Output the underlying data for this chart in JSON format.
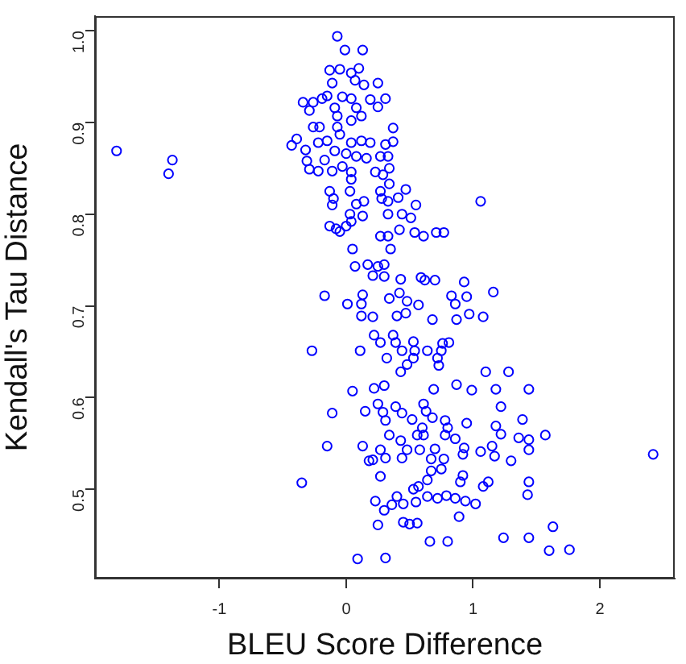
{
  "chart_data": {
    "type": "scatter",
    "xlabel": "BLEU Score Difference",
    "ylabel": "Kendall's Tau Distance",
    "xlim": [
      -1.98,
      2.59
    ],
    "ylim": [
      0.4025,
      1.016
    ],
    "xticks": [
      -1,
      0,
      1,
      2
    ],
    "yticks": [
      0.5,
      0.6,
      0.7,
      0.8,
      0.9,
      {
        "value": 1,
        "label": "1.0"
      }
    ],
    "marker": "circle",
    "legend": false,
    "grid": false,
    "series": [
      {
        "color": "#0000ff",
        "x": [
          -1.81,
          -1.37,
          -1.4,
          -0.07,
          -0.01,
          0.13,
          -0.13,
          -0.05,
          0.04,
          0.1,
          0.07,
          0.14,
          -0.11,
          -0.34,
          -0.26,
          -0.19,
          -0.15,
          -0.03,
          0.04,
          -0.29,
          -0.09,
          0.08,
          0.19,
          -0.07,
          0.04,
          0.12,
          -0.26,
          -0.21,
          -0.07,
          -0.39,
          -0.43,
          -0.32,
          -0.22,
          -0.15,
          -0.05,
          0.04,
          0.12,
          0.19,
          -0.09,
          0.0,
          0.08,
          0.16,
          -0.17,
          -0.31,
          -0.29,
          -0.22,
          -0.11,
          -0.03,
          0.04,
          0.23,
          0.04,
          0.03,
          -0.13,
          -0.1,
          -0.11,
          0.08,
          0.14,
          0.03,
          0.13,
          -0.13,
          -0.08,
          0.0,
          0.04,
          -0.05,
          0.05,
          0.07,
          0.17,
          0.21,
          0.25,
          0.31,
          0.25,
          0.37,
          0.31,
          0.37,
          0.27,
          0.33,
          0.34,
          0.29,
          0.34,
          0.27,
          0.47,
          0.41,
          0.28,
          0.33,
          0.55,
          1.06,
          0.33,
          0.44,
          0.51,
          0.42,
          0.54,
          0.61,
          0.71,
          0.77,
          0.27,
          0.33,
          0.35,
          0.25,
          0.3,
          0.3,
          0.43,
          0.59,
          0.62,
          0.7,
          0.93,
          -0.17,
          0.01,
          0.13,
          0.12,
          0.12,
          0.21,
          0.22,
          -0.27,
          0.11,
          0.05,
          0.22,
          -0.11,
          0.15,
          -0.15,
          0.13,
          0.18,
          0.21,
          -0.35,
          0.23,
          0.09,
          0.42,
          0.34,
          0.48,
          0.57,
          0.83,
          0.86,
          0.95,
          1.16,
          0.4,
          0.47,
          0.68,
          0.87,
          0.97,
          1.08,
          0.37,
          0.27,
          0.39,
          0.53,
          0.44,
          0.54,
          0.64,
          0.76,
          0.81,
          0.75,
          0.32,
          0.53,
          0.72,
          0.48,
          0.73,
          0.43,
          1.1,
          1.28,
          0.3,
          0.69,
          0.87,
          0.99,
          1.18,
          1.44,
          0.25,
          0.39,
          0.61,
          1.22,
          0.29,
          0.44,
          0.63,
          0.31,
          0.52,
          0.68,
          0.78,
          0.95,
          1.39,
          1.18,
          0.6,
          0.8,
          0.34,
          0.43,
          0.56,
          0.61,
          0.78,
          0.86,
          1.22,
          1.36,
          1.44,
          1.57,
          2.42,
          0.27,
          0.48,
          0.58,
          0.7,
          0.93,
          1.06,
          1.15,
          1.44,
          0.31,
          0.44,
          0.67,
          0.77,
          0.92,
          1.17,
          1.3,
          0.27,
          0.67,
          0.75,
          0.64,
          0.92,
          0.9,
          1.12,
          1.08,
          1.44,
          0.57,
          0.53,
          0.4,
          0.45,
          0.64,
          0.72,
          0.79,
          0.86,
          0.94,
          1.02,
          1.43,
          0.3,
          0.36,
          0.55,
          0.89,
          0.25,
          0.45,
          0.5,
          0.56,
          1.63,
          0.66,
          0.8,
          1.24,
          1.44,
          1.6,
          1.76,
          0.31
        ],
        "values": [
          0.869,
          0.859,
          0.844,
          0.994,
          0.979,
          0.979,
          0.957,
          0.958,
          0.954,
          0.959,
          0.946,
          0.941,
          0.943,
          0.922,
          0.922,
          0.926,
          0.929,
          0.928,
          0.926,
          0.913,
          0.916,
          0.916,
          0.925,
          0.907,
          0.902,
          0.907,
          0.895,
          0.895,
          0.895,
          0.882,
          0.875,
          0.87,
          0.878,
          0.88,
          0.887,
          0.878,
          0.88,
          0.878,
          0.869,
          0.866,
          0.863,
          0.861,
          0.859,
          0.858,
          0.849,
          0.847,
          0.847,
          0.852,
          0.846,
          0.846,
          0.838,
          0.825,
          0.825,
          0.817,
          0.81,
          0.811,
          0.814,
          0.8,
          0.798,
          0.787,
          0.784,
          0.787,
          0.792,
          0.781,
          0.762,
          0.743,
          0.745,
          0.733,
          0.943,
          0.926,
          0.917,
          0.894,
          0.876,
          0.879,
          0.863,
          0.863,
          0.85,
          0.843,
          0.833,
          0.825,
          0.827,
          0.818,
          0.817,
          0.814,
          0.81,
          0.814,
          0.8,
          0.8,
          0.796,
          0.783,
          0.78,
          0.776,
          0.78,
          0.78,
          0.776,
          0.776,
          0.762,
          0.743,
          0.745,
          0.732,
          0.729,
          0.731,
          0.728,
          0.728,
          0.726,
          0.711,
          0.702,
          0.712,
          0.702,
          0.689,
          0.688,
          0.668,
          0.651,
          0.651,
          0.607,
          0.61,
          0.583,
          0.585,
          0.547,
          0.547,
          0.531,
          0.532,
          0.507,
          0.487,
          0.424,
          0.714,
          0.708,
          0.705,
          0.701,
          0.711,
          0.702,
          0.71,
          0.715,
          0.689,
          0.692,
          0.685,
          0.685,
          0.691,
          0.688,
          0.668,
          0.66,
          0.66,
          0.661,
          0.651,
          0.651,
          0.651,
          0.659,
          0.66,
          0.651,
          0.643,
          0.643,
          0.643,
          0.636,
          0.635,
          0.628,
          0.628,
          0.628,
          0.613,
          0.609,
          0.614,
          0.608,
          0.609,
          0.609,
          0.593,
          0.59,
          0.593,
          0.59,
          0.584,
          0.583,
          0.585,
          0.575,
          0.576,
          0.578,
          0.575,
          0.572,
          0.576,
          0.569,
          0.567,
          0.567,
          0.559,
          0.553,
          0.559,
          0.559,
          0.559,
          0.555,
          0.56,
          0.556,
          0.554,
          0.559,
          0.538,
          0.543,
          0.543,
          0.543,
          0.544,
          0.545,
          0.541,
          0.547,
          0.543,
          0.534,
          0.534,
          0.533,
          0.533,
          0.538,
          0.536,
          0.531,
          0.514,
          0.52,
          0.522,
          0.51,
          0.515,
          0.508,
          0.508,
          0.503,
          0.508,
          0.503,
          0.5,
          0.492,
          0.484,
          0.492,
          0.49,
          0.493,
          0.49,
          0.487,
          0.484,
          0.494,
          0.477,
          0.483,
          0.486,
          0.47,
          0.461,
          0.464,
          0.462,
          0.463,
          0.459,
          0.443,
          0.443,
          0.447,
          0.447,
          0.433,
          0.434,
          0.425
        ]
      }
    ]
  }
}
